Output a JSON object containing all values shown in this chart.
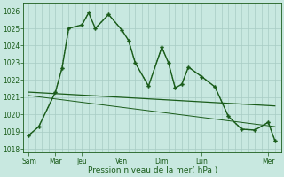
{
  "background_color": "#c8e8e0",
  "grid_color": "#a8ccc4",
  "line_color": "#1a5c1a",
  "ylim": [
    1017.8,
    1026.5
  ],
  "yticks": [
    1018,
    1019,
    1020,
    1021,
    1022,
    1023,
    1024,
    1025,
    1026
  ],
  "xlabel": "Pression niveau de la mer( hPa )",
  "day_labels": [
    "Sam",
    "Mar",
    "Jeu",
    "Ven",
    "Dim",
    "Lun",
    "Mer"
  ],
  "day_positions": [
    0,
    24,
    48,
    84,
    120,
    156,
    216
  ],
  "total_points": 25,
  "main_x": [
    0,
    9,
    24,
    30,
    36,
    48,
    54,
    60,
    72,
    84,
    90,
    96,
    108,
    120,
    126,
    132,
    138,
    144,
    156,
    168,
    180,
    192,
    204,
    216,
    222
  ],
  "main_y": [
    1018.8,
    1019.3,
    1021.3,
    1022.7,
    1025.0,
    1025.2,
    1025.9,
    1025.0,
    1025.8,
    1024.9,
    1024.3,
    1023.0,
    1021.65,
    1023.9,
    1023.0,
    1021.55,
    1021.75,
    1022.75,
    1022.2,
    1021.6,
    1019.9,
    1019.15,
    1019.1,
    1019.55,
    1018.5
  ],
  "dotted_x": [
    0,
    9,
    24,
    30,
    36,
    48,
    54,
    60,
    72,
    84,
    90,
    96,
    108,
    120,
    126,
    132,
    138,
    144,
    156,
    168,
    180,
    192,
    204,
    216,
    222
  ],
  "dotted_y": [
    1018.8,
    1019.3,
    1021.3,
    1022.7,
    1025.0,
    1025.2,
    1025.9,
    1025.0,
    1025.8,
    1024.9,
    1024.3,
    1023.0,
    1021.65,
    1023.9,
    1023.0,
    1021.55,
    1021.75,
    1022.75,
    1022.2,
    1021.6,
    1019.9,
    1019.15,
    1019.1,
    1019.55,
    1018.5
  ],
  "trend1_x": [
    0,
    222
  ],
  "trend1_y": [
    1021.3,
    1020.5
  ],
  "trend2_x": [
    0,
    222
  ],
  "trend2_y": [
    1021.1,
    1019.3
  ],
  "xlim": [
    -5,
    228
  ]
}
